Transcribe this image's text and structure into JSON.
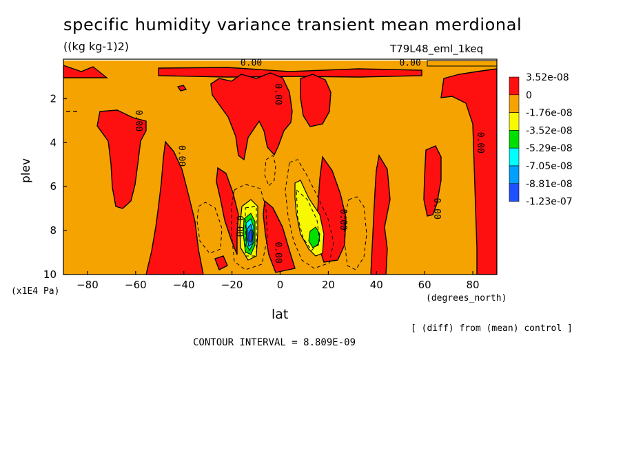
{
  "header": {
    "title": "specific humidity variance transient mean merdional",
    "units": "((kg kg-1)2)",
    "run": "T79L48_eml_1keq"
  },
  "footer": {
    "scale": "(x1E4 Pa)",
    "xunits": "(degrees_north)",
    "diff": "[ (diff) from (mean) control ]",
    "contour_interval": "CONTOUR INTERVAL = 8.809E-09"
  },
  "chart_data": {
    "type": "heatmap",
    "title": "specific humidity variance transient mean merdional",
    "xlabel": "lat",
    "ylabel": "plev",
    "xlim": [
      -90,
      90
    ],
    "ylim": [
      10,
      0.2
    ],
    "x_ticks": [
      -80,
      -60,
      -40,
      -20,
      0,
      20,
      40,
      60,
      80
    ],
    "y_ticks": [
      2,
      4,
      6,
      8,
      10
    ],
    "background_color": "#f5a300",
    "legend": [
      {
        "label": "3.52e-08",
        "color": "#ff1010"
      },
      {
        "label": "0",
        "color": "#f5a300"
      },
      {
        "label": "-1.76e-08",
        "color": "#f8f800"
      },
      {
        "label": "-3.52e-08",
        "color": "#00e000"
      },
      {
        "label": "-5.29e-08",
        "color": "#00ffff"
      },
      {
        "label": "-7.05e-08",
        "color": "#00a0ff"
      },
      {
        "label": "-8.81e-08",
        "color": "#1e50ff"
      },
      {
        "label": "-1.23e-07",
        "color": ""
      }
    ],
    "contour_labels": [
      {
        "text": "0.00",
        "lat": -12,
        "plev": 0.5
      },
      {
        "text": "0.00",
        "lat": 54,
        "plev": 0.5
      },
      {
        "text": "0.00",
        "lat": -2,
        "plev": 1.8
      },
      {
        "text": "0.00",
        "lat": -60,
        "plev": 3.0
      },
      {
        "text": "0.00",
        "lat": -42,
        "plev": 4.6
      },
      {
        "text": "0.00",
        "lat": 82,
        "plev": 4.0
      },
      {
        "text": "0.00",
        "lat": 64,
        "plev": 7.0
      },
      {
        "text": "0.00",
        "lat": 25,
        "plev": 7.5
      },
      {
        "text": "0.00",
        "lat": -18,
        "plev": 7.8
      },
      {
        "text": "0.00",
        "lat": -2,
        "plev": 9.0
      }
    ]
  }
}
